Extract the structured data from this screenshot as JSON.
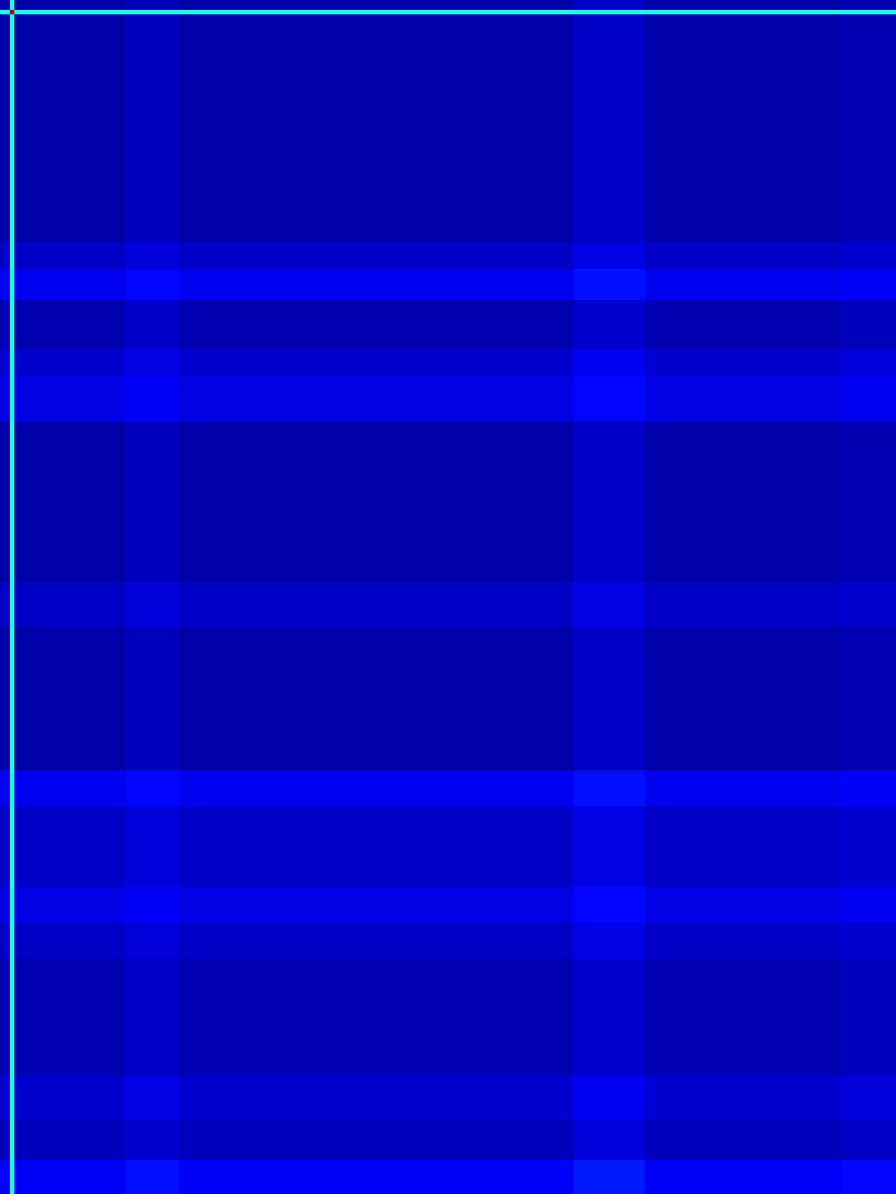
{
  "chart_data": {
    "type": "heatmap",
    "tick_labels": false,
    "xlim": [
      0,
      1000
    ],
    "ylim": [
      0,
      1333
    ],
    "x_edges": [
      0,
      11,
      16,
      140,
      200,
      640,
      720,
      940,
      1000
    ],
    "y_edges": [
      0,
      11,
      16,
      270,
      300,
      335,
      390,
      420,
      470,
      650,
      700,
      860,
      900,
      990,
      1030,
      1070,
      1200,
      1250,
      1295,
      1333
    ],
    "zlim": [
      0,
      1
    ],
    "z": [
      [
        0.04,
        0.4,
        0.04,
        0.06,
        0.04,
        0.07,
        0.04,
        0.05
      ],
      [
        0.4,
        0.95,
        0.4,
        0.4,
        0.4,
        0.4,
        0.4,
        0.4
      ],
      [
        0.04,
        0.4,
        0.04,
        0.06,
        0.04,
        0.07,
        0.04,
        0.05
      ],
      [
        0.07,
        0.4,
        0.07,
        0.09,
        0.07,
        0.1,
        0.07,
        0.08
      ],
      [
        0.11,
        0.4,
        0.11,
        0.13,
        0.11,
        0.14,
        0.11,
        0.12
      ],
      [
        0.05,
        0.4,
        0.05,
        0.07,
        0.05,
        0.08,
        0.05,
        0.06
      ],
      [
        0.08,
        0.4,
        0.08,
        0.1,
        0.08,
        0.11,
        0.08,
        0.09
      ],
      [
        0.1,
        0.4,
        0.1,
        0.12,
        0.1,
        0.13,
        0.1,
        0.11
      ],
      [
        0.04,
        0.4,
        0.04,
        0.06,
        0.04,
        0.07,
        0.04,
        0.05
      ],
      [
        0.07,
        0.4,
        0.07,
        0.09,
        0.07,
        0.1,
        0.07,
        0.08
      ],
      [
        0.04,
        0.4,
        0.04,
        0.06,
        0.04,
        0.07,
        0.04,
        0.05
      ],
      [
        0.11,
        0.4,
        0.11,
        0.13,
        0.11,
        0.14,
        0.11,
        0.12
      ],
      [
        0.07,
        0.4,
        0.07,
        0.09,
        0.07,
        0.1,
        0.07,
        0.08
      ],
      [
        0.1,
        0.4,
        0.1,
        0.12,
        0.1,
        0.13,
        0.1,
        0.11
      ],
      [
        0.07,
        0.4,
        0.07,
        0.09,
        0.07,
        0.1,
        0.07,
        0.08
      ],
      [
        0.05,
        0.4,
        0.05,
        0.07,
        0.05,
        0.08,
        0.05,
        0.06
      ],
      [
        0.08,
        0.4,
        0.08,
        0.1,
        0.08,
        0.11,
        0.08,
        0.09
      ],
      [
        0.06,
        0.4,
        0.06,
        0.08,
        0.06,
        0.09,
        0.06,
        0.07
      ],
      [
        0.12,
        0.4,
        0.12,
        0.14,
        0.12,
        0.15,
        0.12,
        0.13
      ]
    ]
  }
}
